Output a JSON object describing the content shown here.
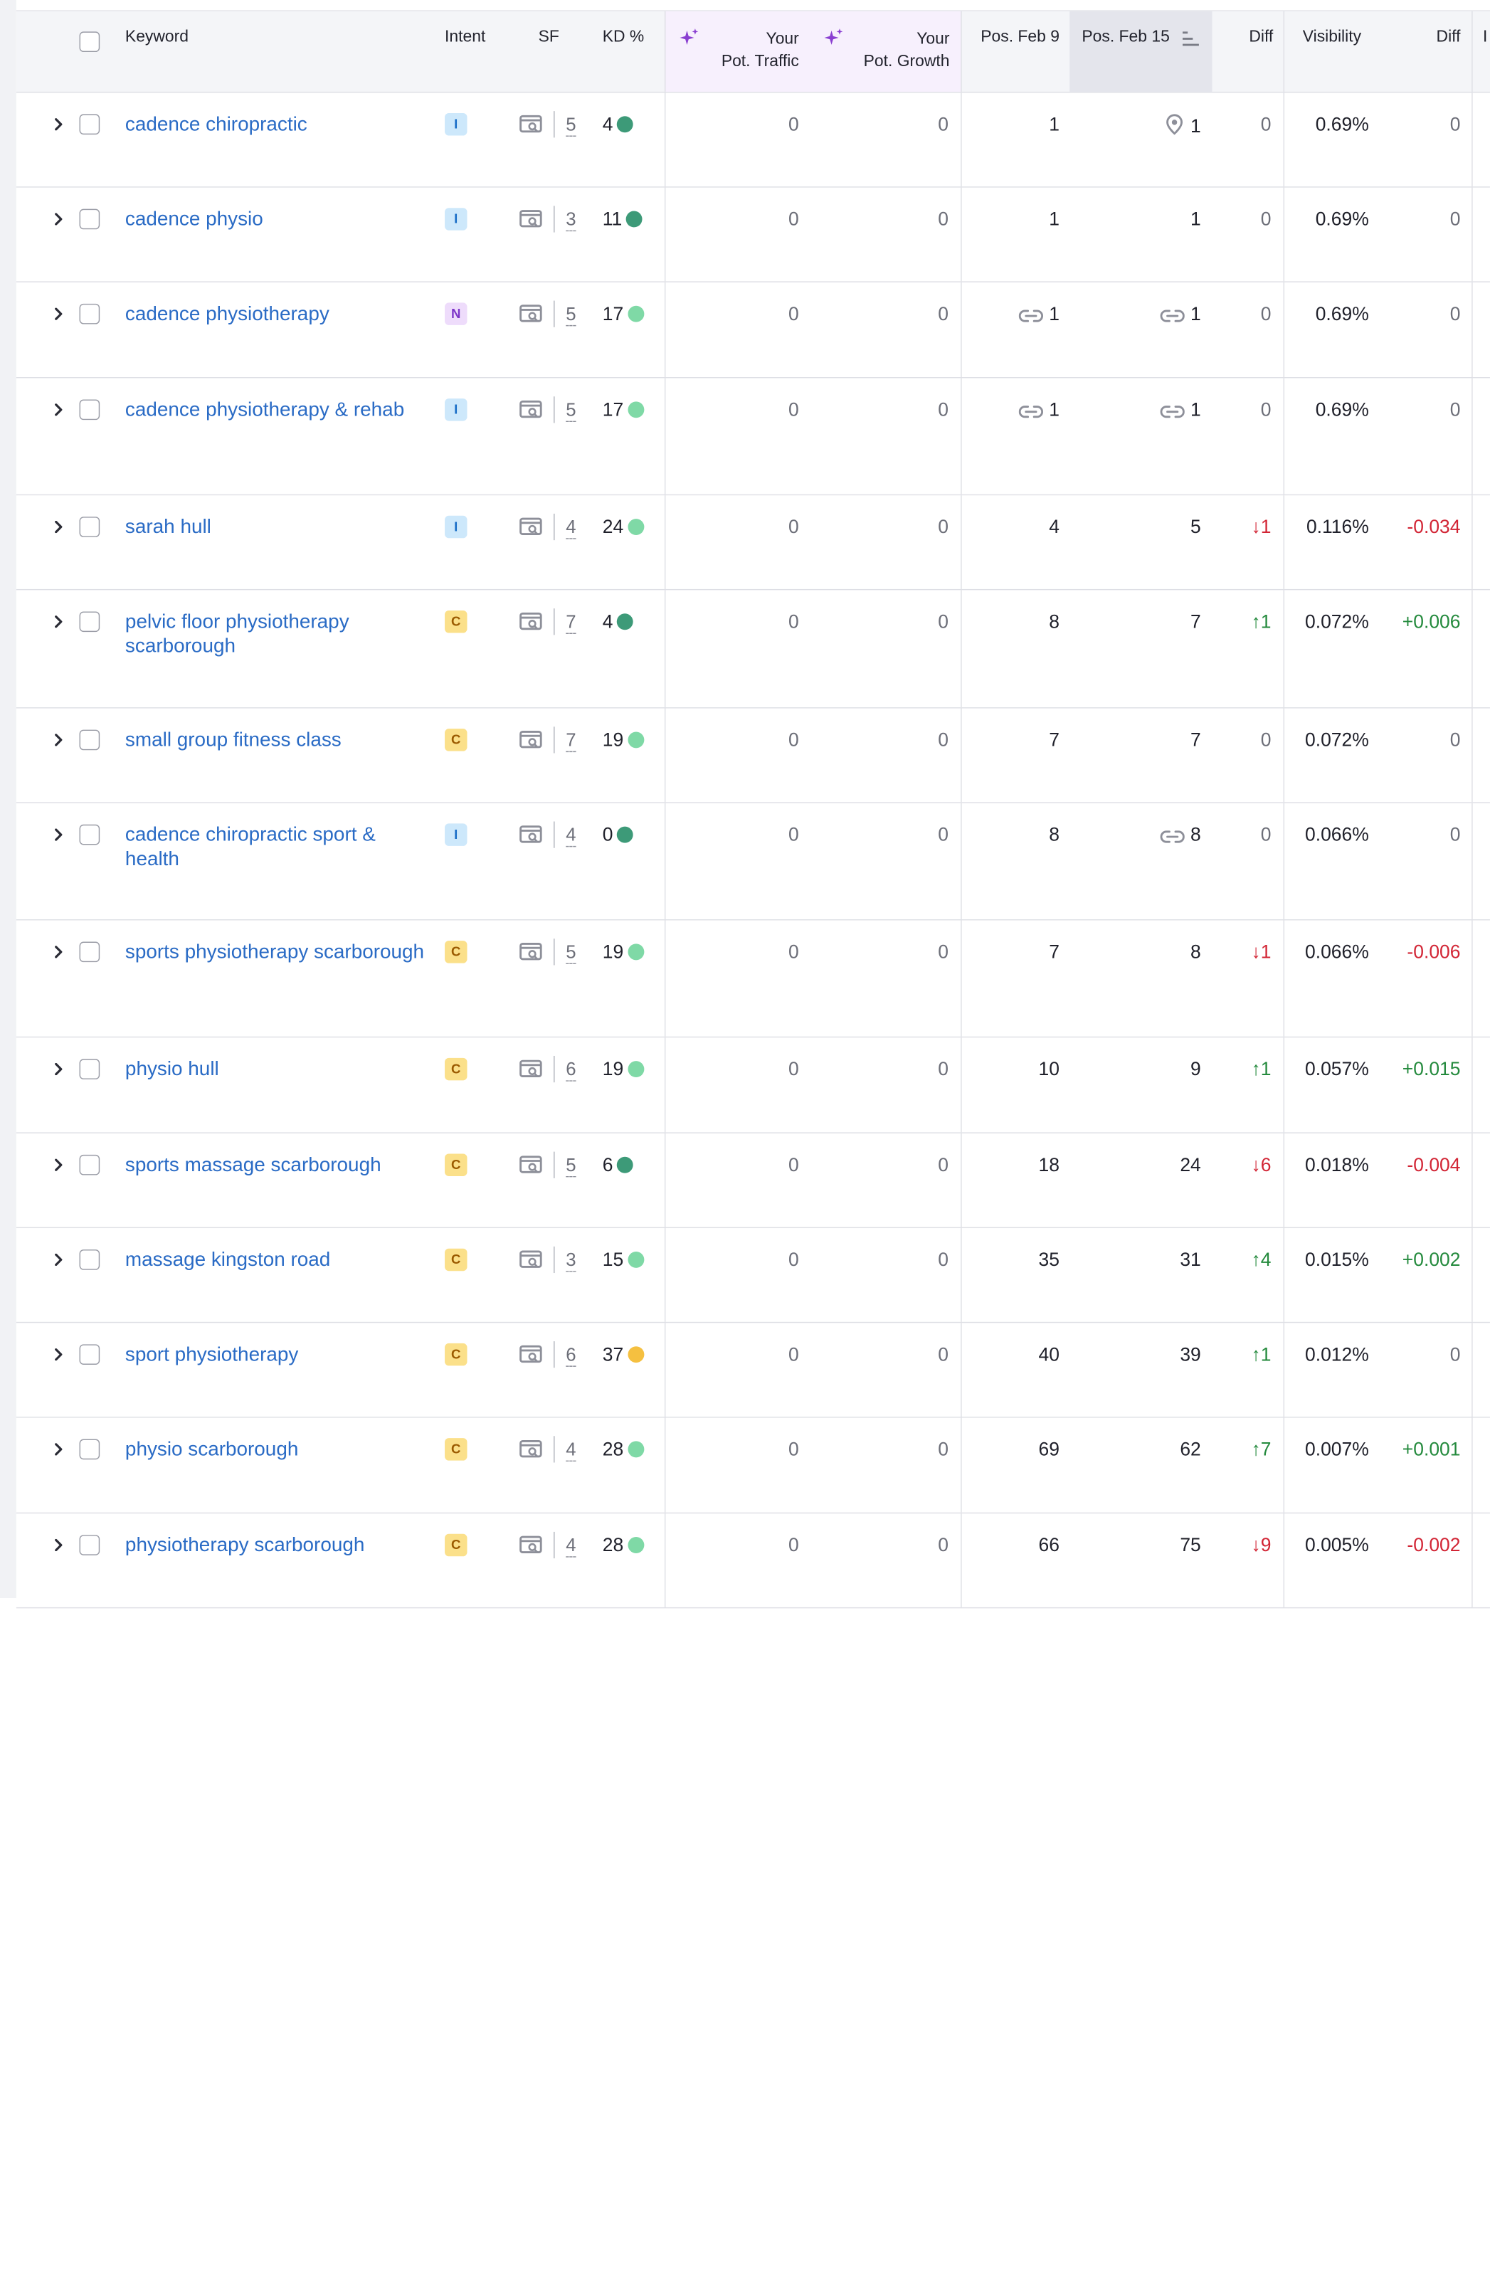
{
  "headers": {
    "keyword": "Keyword",
    "intent": "Intent",
    "sf": "SF",
    "kd": "KD %",
    "pot_traffic_1": "Your",
    "pot_traffic_2": "Pot. Traffic",
    "pot_growth_1": "Your",
    "pot_growth_2": "Pot. Growth",
    "pos_prev": "Pos. Feb 9",
    "pos_curr": "Pos. Feb 15",
    "diff": "Diff",
    "visibility": "Visibility",
    "vis_diff": "Diff",
    "next_col_fragment": "I"
  },
  "colors": {
    "link": "#2a6bc5",
    "kd_dark_green": "#3d9a78",
    "kd_light_green": "#7fd9a6",
    "kd_yellow": "#f5c040",
    "down_red": "#d22535",
    "up_green": "#248a3d",
    "accent_purple": "#8a3fd1"
  },
  "rows": [
    {
      "keyword": "cadence chiropractic",
      "intent": "I",
      "sf": "5",
      "kd": "4",
      "kd_level": "dark",
      "pot_traffic": "0",
      "pot_growth": "0",
      "pos_prev": "1",
      "pos_prev_icon": "",
      "pos_curr": "1",
      "pos_curr_icon": "location-pin-icon",
      "diff": "0",
      "diff_dir": "none",
      "visibility": "0.69%",
      "vis_diff": "0",
      "vis_dir": "none"
    },
    {
      "keyword": "cadence physio",
      "intent": "I",
      "sf": "3",
      "kd": "11",
      "kd_level": "dark",
      "pot_traffic": "0",
      "pot_growth": "0",
      "pos_prev": "1",
      "pos_prev_icon": "",
      "pos_curr": "1",
      "pos_curr_icon": "",
      "diff": "0",
      "diff_dir": "none",
      "visibility": "0.69%",
      "vis_diff": "0",
      "vis_dir": "none"
    },
    {
      "keyword": "cadence physiotherapy",
      "intent": "N",
      "sf": "5",
      "kd": "17",
      "kd_level": "light",
      "pot_traffic": "0",
      "pot_growth": "0",
      "pos_prev": "1",
      "pos_prev_icon": "link-icon",
      "pos_curr": "1",
      "pos_curr_icon": "link-icon",
      "diff": "0",
      "diff_dir": "none",
      "visibility": "0.69%",
      "vis_diff": "0",
      "vis_dir": "none"
    },
    {
      "keyword": "cadence physiotherapy & rehab",
      "intent": "I",
      "sf": "5",
      "kd": "17",
      "kd_level": "light",
      "pot_traffic": "0",
      "pot_growth": "0",
      "pos_prev": "1",
      "pos_prev_icon": "link-icon",
      "pos_curr": "1",
      "pos_curr_icon": "link-icon",
      "diff": "0",
      "diff_dir": "none",
      "visibility": "0.69%",
      "vis_diff": "0",
      "vis_dir": "none"
    },
    {
      "keyword": "sarah hull",
      "intent": "I",
      "sf": "4",
      "kd": "24",
      "kd_level": "light",
      "pot_traffic": "0",
      "pot_growth": "0",
      "pos_prev": "4",
      "pos_prev_icon": "",
      "pos_curr": "5",
      "pos_curr_icon": "",
      "diff": "↓1",
      "diff_dir": "down",
      "visibility": "0.116%",
      "vis_diff": "-0.034",
      "vis_dir": "down"
    },
    {
      "keyword": "pelvic floor physiotherapy scarborough",
      "intent": "C",
      "sf": "7",
      "kd": "4",
      "kd_level": "dark",
      "pot_traffic": "0",
      "pot_growth": "0",
      "pos_prev": "8",
      "pos_prev_icon": "",
      "pos_curr": "7",
      "pos_curr_icon": "",
      "diff": "↑1",
      "diff_dir": "up",
      "visibility": "0.072%",
      "vis_diff": "+0.006",
      "vis_dir": "up"
    },
    {
      "keyword": "small group fitness class",
      "intent": "C",
      "sf": "7",
      "kd": "19",
      "kd_level": "light",
      "pot_traffic": "0",
      "pot_growth": "0",
      "pos_prev": "7",
      "pos_prev_icon": "",
      "pos_curr": "7",
      "pos_curr_icon": "",
      "diff": "0",
      "diff_dir": "none",
      "visibility": "0.072%",
      "vis_diff": "0",
      "vis_dir": "none"
    },
    {
      "keyword": "cadence chiropractic sport & health",
      "intent": "I",
      "sf": "4",
      "kd": "0",
      "kd_level": "dark",
      "pot_traffic": "0",
      "pot_growth": "0",
      "pos_prev": "8",
      "pos_prev_icon": "",
      "pos_curr": "8",
      "pos_curr_icon": "link-icon",
      "diff": "0",
      "diff_dir": "none",
      "visibility": "0.066%",
      "vis_diff": "0",
      "vis_dir": "none"
    },
    {
      "keyword": "sports physiotherapy scarborough",
      "intent": "C",
      "sf": "5",
      "kd": "19",
      "kd_level": "light",
      "pot_traffic": "0",
      "pot_growth": "0",
      "pos_prev": "7",
      "pos_prev_icon": "",
      "pos_curr": "8",
      "pos_curr_icon": "",
      "diff": "↓1",
      "diff_dir": "down",
      "visibility": "0.066%",
      "vis_diff": "-0.006",
      "vis_dir": "down"
    },
    {
      "keyword": "physio hull",
      "intent": "C",
      "sf": "6",
      "kd": "19",
      "kd_level": "light",
      "pot_traffic": "0",
      "pot_growth": "0",
      "pos_prev": "10",
      "pos_prev_icon": "",
      "pos_curr": "9",
      "pos_curr_icon": "",
      "diff": "↑1",
      "diff_dir": "up",
      "visibility": "0.057%",
      "vis_diff": "+0.015",
      "vis_dir": "up"
    },
    {
      "keyword": "sports massage scarborough",
      "intent": "C",
      "sf": "5",
      "kd": "6",
      "kd_level": "dark",
      "pot_traffic": "0",
      "pot_growth": "0",
      "pos_prev": "18",
      "pos_prev_icon": "",
      "pos_curr": "24",
      "pos_curr_icon": "",
      "diff": "↓6",
      "diff_dir": "down",
      "visibility": "0.018%",
      "vis_diff": "-0.004",
      "vis_dir": "down"
    },
    {
      "keyword": "massage kingston road",
      "intent": "C",
      "sf": "3",
      "kd": "15",
      "kd_level": "light",
      "pot_traffic": "0",
      "pot_growth": "0",
      "pos_prev": "35",
      "pos_prev_icon": "",
      "pos_curr": "31",
      "pos_curr_icon": "",
      "diff": "↑4",
      "diff_dir": "up",
      "visibility": "0.015%",
      "vis_diff": "+0.002",
      "vis_dir": "up"
    },
    {
      "keyword": "sport physiotherapy",
      "intent": "C",
      "sf": "6",
      "kd": "37",
      "kd_level": "yellow",
      "pot_traffic": "0",
      "pot_growth": "0",
      "pos_prev": "40",
      "pos_prev_icon": "",
      "pos_curr": "39",
      "pos_curr_icon": "",
      "diff": "↑1",
      "diff_dir": "up",
      "visibility": "0.012%",
      "vis_diff": "0",
      "vis_dir": "none"
    },
    {
      "keyword": "physio scarborough",
      "intent": "C",
      "sf": "4",
      "kd": "28",
      "kd_level": "light",
      "pot_traffic": "0",
      "pot_growth": "0",
      "pos_prev": "69",
      "pos_prev_icon": "",
      "pos_curr": "62",
      "pos_curr_icon": "",
      "diff": "↑7",
      "diff_dir": "up",
      "visibility": "0.007%",
      "vis_diff": "+0.001",
      "vis_dir": "up"
    },
    {
      "keyword": "physiotherapy scarborough",
      "intent": "C",
      "sf": "4",
      "kd": "28",
      "kd_level": "light",
      "pot_traffic": "0",
      "pot_growth": "0",
      "pos_prev": "66",
      "pos_prev_icon": "",
      "pos_curr": "75",
      "pos_curr_icon": "",
      "diff": "↓9",
      "diff_dir": "down",
      "visibility": "0.005%",
      "vis_diff": "-0.002",
      "vis_dir": "down"
    }
  ]
}
